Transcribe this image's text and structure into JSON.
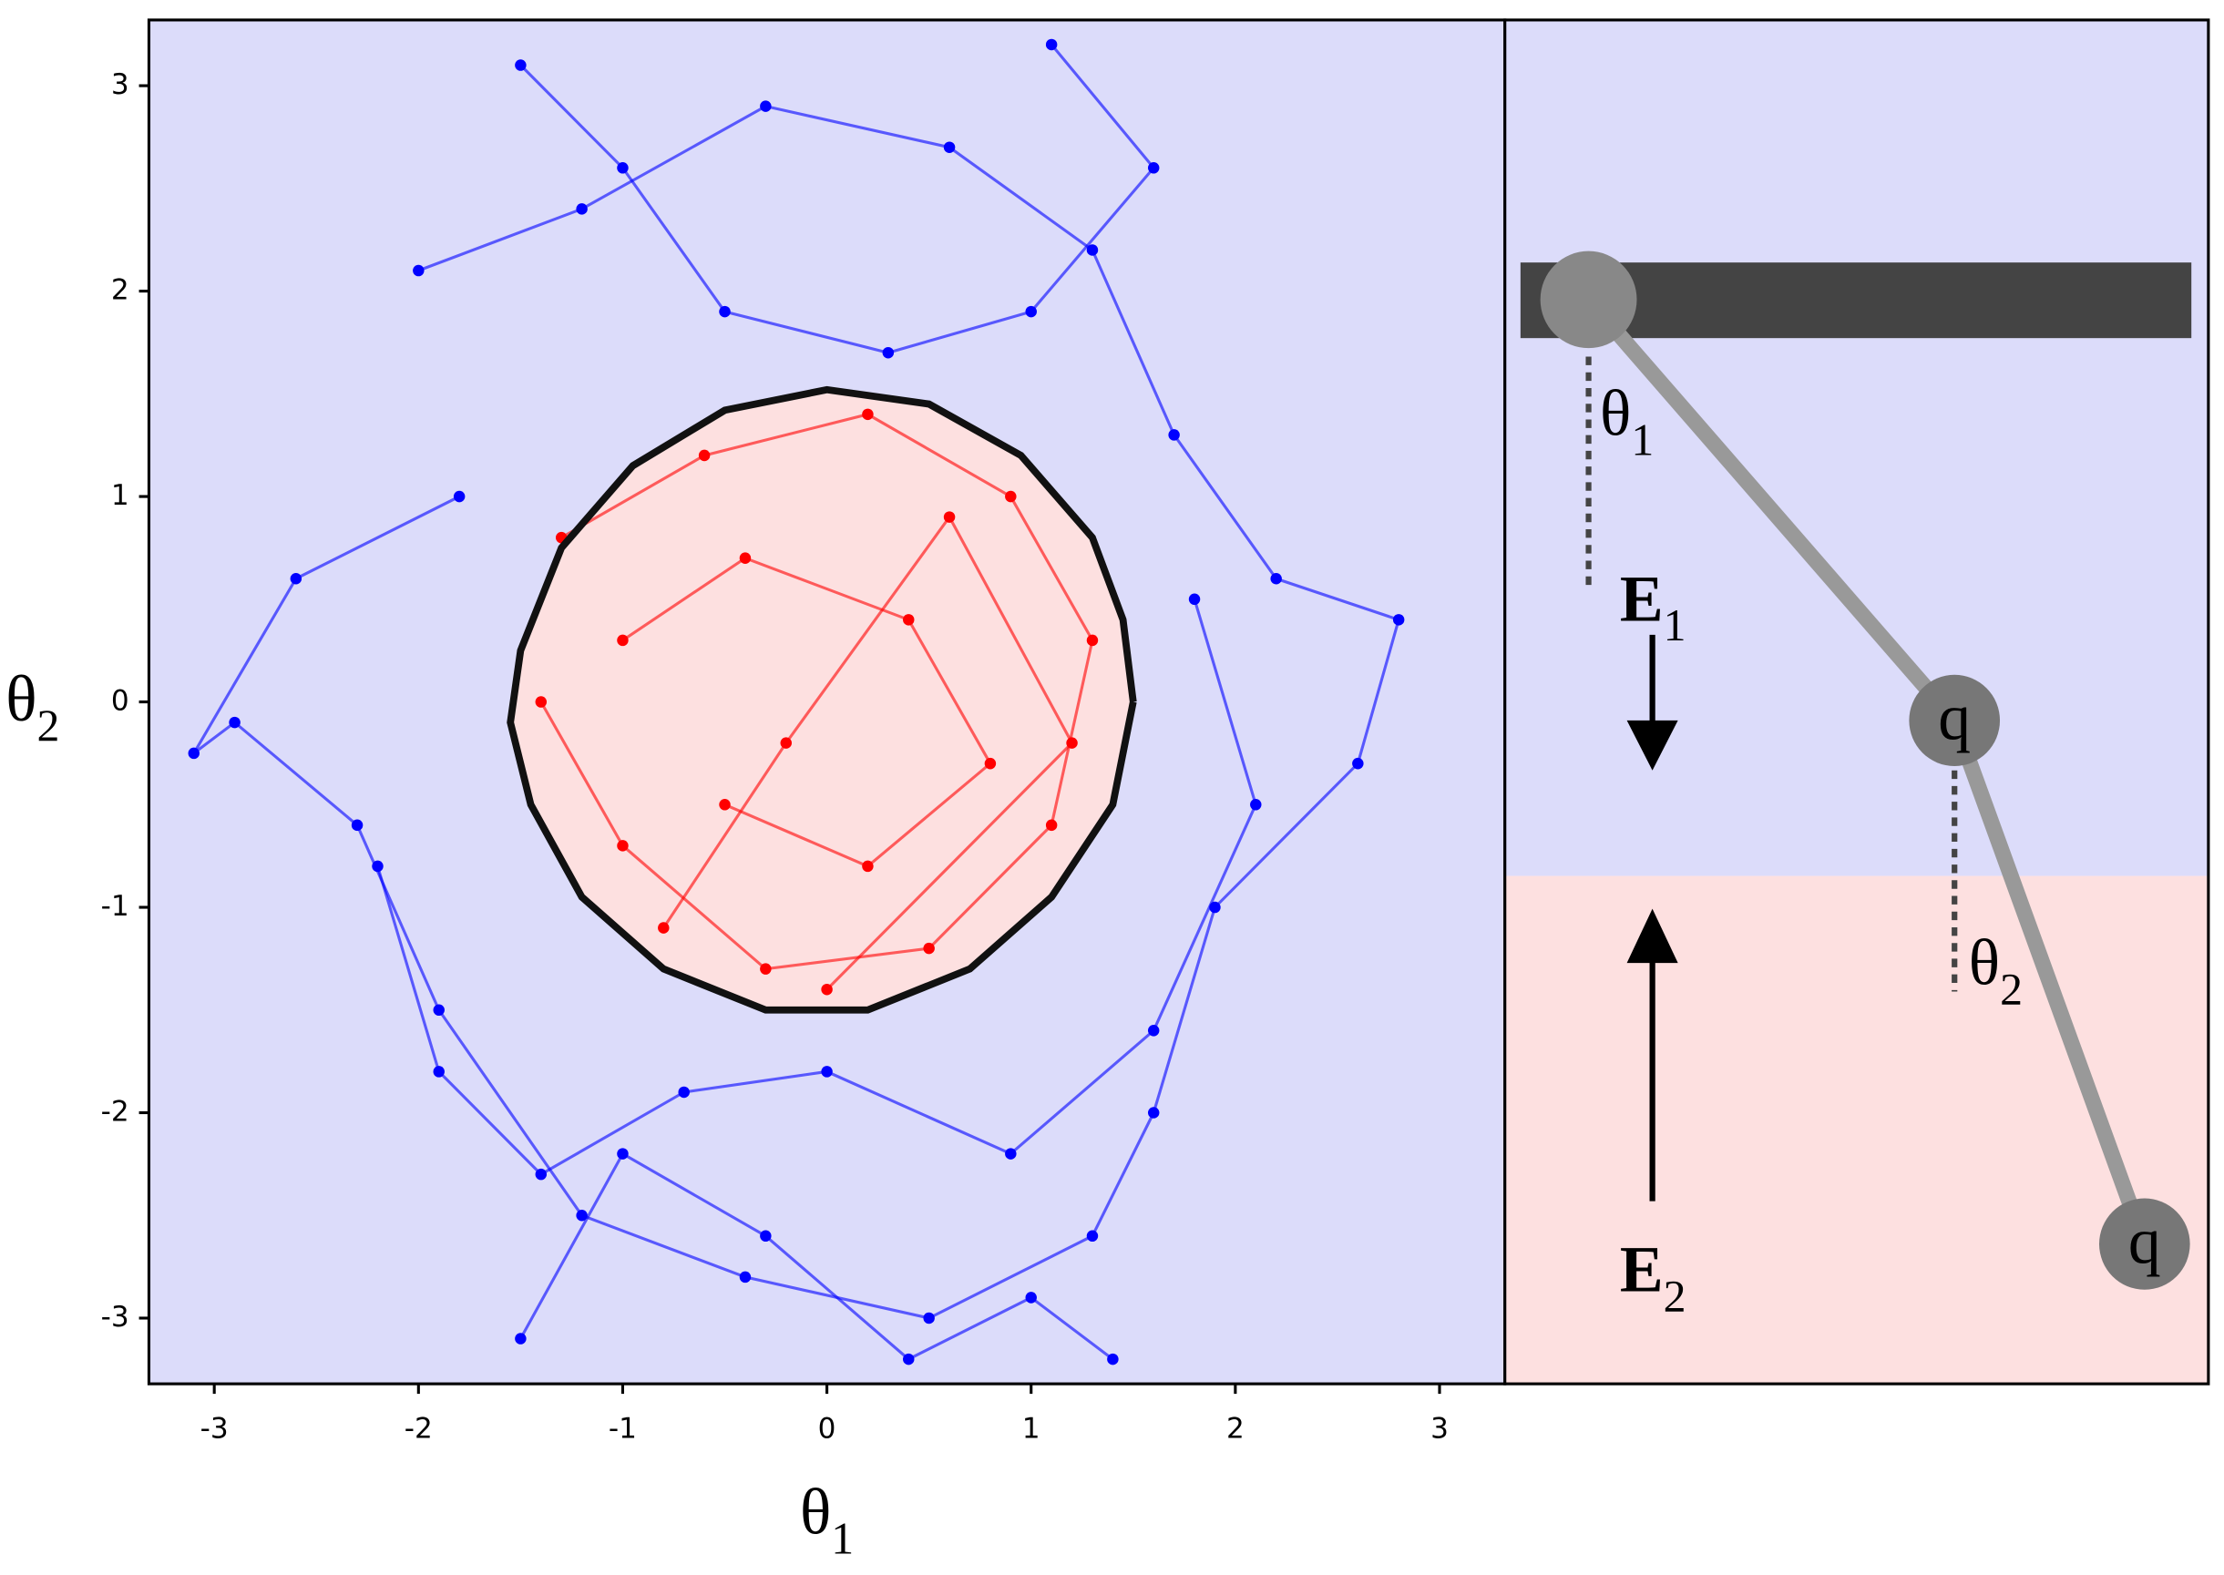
{
  "chart_data": {
    "type": "line",
    "x_label": {
      "base": "θ",
      "sub": "1"
    },
    "y_label": {
      "base": "θ",
      "sub": "2"
    },
    "xlim": [
      -3.32,
      3.32
    ],
    "ylim": [
      -3.32,
      3.32
    ],
    "xticks": [
      -3,
      -2,
      -1,
      0,
      1,
      2,
      3
    ],
    "yticks": [
      -3,
      -2,
      -1,
      0,
      1,
      2,
      3
    ],
    "background": "#dcdcfa",
    "boundary": {
      "color": "#111111",
      "fill": "#fde0e0",
      "x": [
        1.5,
        1.45,
        1.3,
        0.95,
        0.5,
        0,
        -0.5,
        -0.95,
        -1.3,
        -1.5,
        -1.55,
        -1.45,
        -1.2,
        -0.8,
        -0.3,
        0.2,
        0.7,
        1.1,
        1.4,
        1.5
      ],
      "y": [
        0,
        0.4,
        0.8,
        1.2,
        1.45,
        1.52,
        1.42,
        1.15,
        0.75,
        0.25,
        -0.1,
        -0.5,
        -0.95,
        -1.3,
        -1.5,
        -1.5,
        -1.3,
        -0.95,
        -0.5,
        0
      ]
    },
    "series": [
      {
        "color": "#0000ff",
        "x": [
          -2.0,
          -1.2,
          -0.3,
          0.6,
          1.3,
          1.7,
          2.2,
          2.8,
          2.6,
          1.9,
          1.6,
          1.3,
          0.5,
          -0.4,
          -1.2,
          -1.9,
          -2.3,
          -2.9,
          -3.1,
          -2.6,
          -1.8
        ],
        "y": [
          2.1,
          2.4,
          2.9,
          2.7,
          2.2,
          1.3,
          0.6,
          0.4,
          -0.3,
          -1.0,
          -2.0,
          -2.6,
          -3.0,
          -2.8,
          -2.5,
          -1.5,
          -0.6,
          -0.1,
          -0.25,
          0.6,
          1.0
        ]
      },
      {
        "color": "#0000ff",
        "x": [
          -1.5,
          -1.0,
          -0.5,
          0.3,
          1.0,
          1.6,
          1.1
        ],
        "y": [
          3.1,
          2.6,
          1.9,
          1.7,
          1.9,
          2.6,
          3.2
        ]
      },
      {
        "color": "#0000ff",
        "x": [
          -2.2,
          -1.9,
          -1.4,
          -0.7,
          0,
          0.9,
          1.6,
          2.1,
          1.8
        ],
        "y": [
          -0.8,
          -1.8,
          -2.3,
          -1.9,
          -1.8,
          -2.2,
          -1.6,
          -0.5,
          0.5
        ]
      },
      {
        "color": "#0000ff",
        "x": [
          -1.5,
          -1.0,
          -0.3,
          0.4,
          1.0,
          1.4
        ],
        "y": [
          -3.1,
          -2.2,
          -2.6,
          -3.2,
          -2.9,
          -3.2
        ]
      },
      {
        "color": "#ff0000",
        "x": [
          -1.3,
          -0.6,
          0.2,
          0.9,
          1.3,
          1.1,
          0.5,
          -0.3,
          -1.0,
          -1.4
        ],
        "y": [
          0.8,
          1.2,
          1.4,
          1.0,
          0.3,
          -0.6,
          -1.2,
          -1.3,
          -0.7,
          0.0
        ]
      },
      {
        "color": "#ff0000",
        "x": [
          -1.0,
          -0.4,
          0.4,
          0.8,
          0.2,
          -0.5
        ],
        "y": [
          0.3,
          0.7,
          0.4,
          -0.3,
          -0.8,
          -0.5
        ]
      },
      {
        "color": "#ff0000",
        "x": [
          -0.8,
          -0.2,
          0.6,
          1.2,
          0.0
        ],
        "y": [
          -1.1,
          -0.2,
          0.9,
          -0.2,
          -1.4
        ]
      }
    ]
  },
  "diagram": {
    "theta1": {
      "base": "θ",
      "sub": "1"
    },
    "theta2": {
      "base": "θ",
      "sub": "2"
    },
    "e1": {
      "base": "E",
      "sub": "1"
    },
    "e2": {
      "base": "E",
      "sub": "2"
    },
    "charge1": "q",
    "charge2": "q"
  }
}
